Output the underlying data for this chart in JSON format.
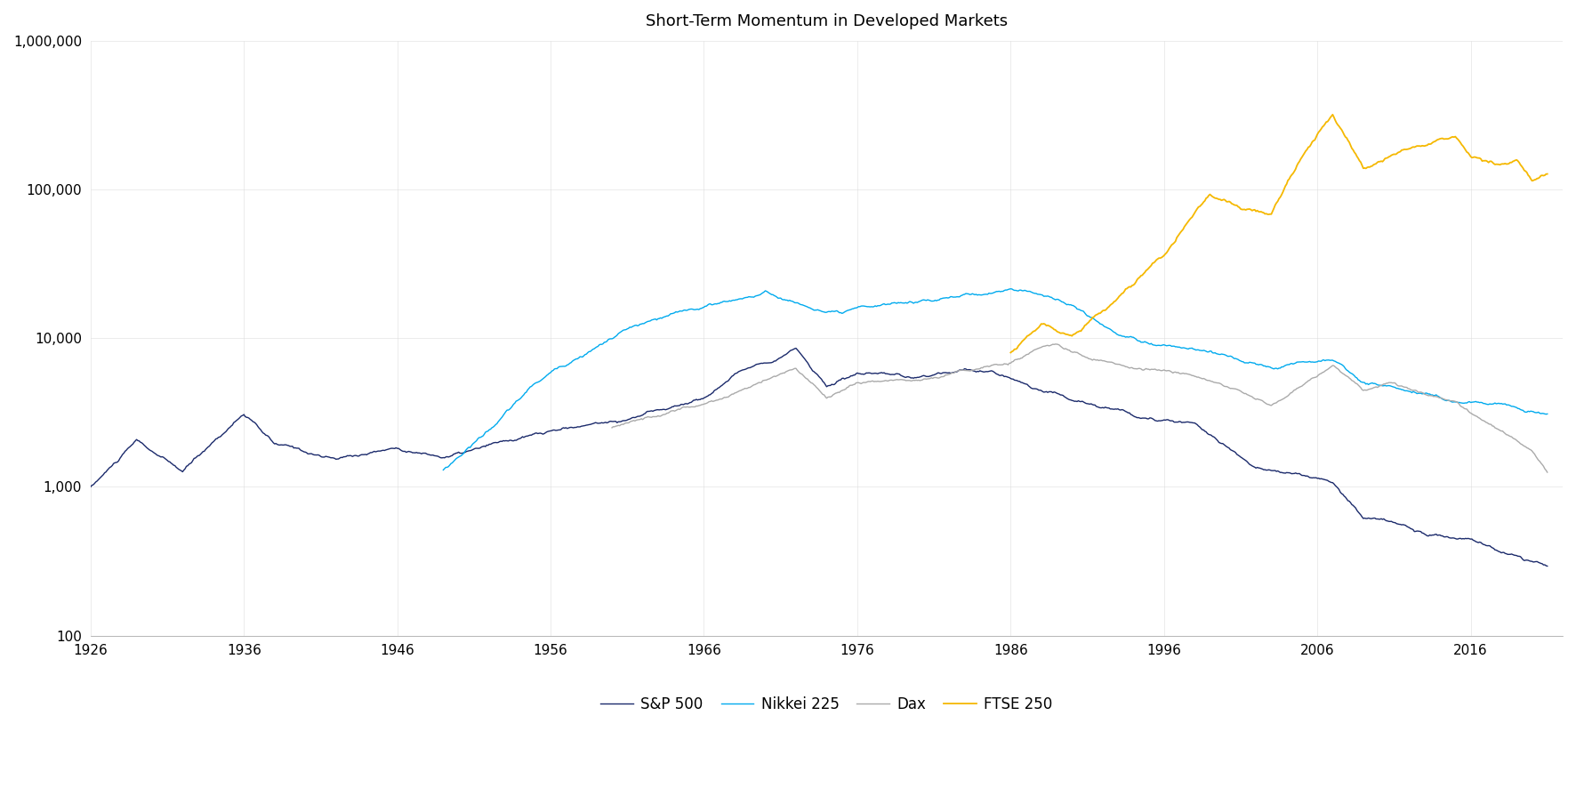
{
  "title": "Short-Term Momentum in Developed Markets",
  "title_fontsize": 13,
  "background_color": "#ffffff",
  "series": {
    "SP500": {
      "label": "S&P 500",
      "color": "#1b2a6b",
      "linewidth": 1.0
    },
    "Nikkei": {
      "label": "Nikkei 225",
      "color": "#00aaee",
      "linewidth": 1.0
    },
    "Dax": {
      "label": "Dax",
      "color": "#aaaaaa",
      "linewidth": 1.0
    },
    "FTSE": {
      "label": "FTSE 250",
      "color": "#f5b800",
      "linewidth": 1.3
    }
  },
  "xlim": [
    1926,
    2022
  ],
  "ylim_log": [
    100,
    1000000
  ],
  "xticks": [
    1926,
    1936,
    1946,
    1956,
    1966,
    1976,
    1986,
    1996,
    2006,
    2016
  ],
  "yticks": [
    100,
    1000,
    10000,
    100000,
    1000000
  ],
  "ytick_labels": [
    "100",
    "1,000",
    "10,000",
    "100,000",
    "1,000,000"
  ],
  "legend_ncol": 4
}
